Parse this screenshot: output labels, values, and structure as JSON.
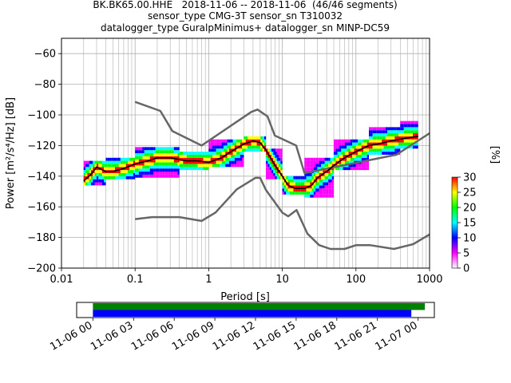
{
  "chart_data": [
    {
      "type": "heatmap",
      "title_lines": [
        "BK.BK65.00.HHE   2018-11-06 -- 2018-11-06  (46/46 segments)",
        "sensor_type CMG-3T sensor_sn T310032",
        "datalogger_type GuralpMinimus+ datalogger_sn MINP-DC59"
      ],
      "xlabel": "Period [s]",
      "ylabel": "Power [m²/s⁴/Hz] [dB]",
      "xscale": "log",
      "xlim": [
        0.01,
        1000
      ],
      "ylim": [
        -200,
        -50
      ],
      "xticks": [
        0.01,
        0.1,
        1,
        10,
        100,
        1000
      ],
      "xtick_labels": [
        "0.01",
        "0.1",
        "1",
        "10",
        "100",
        "1000"
      ],
      "yticks": [
        -200,
        -180,
        -160,
        -140,
        -120,
        -100,
        -80,
        -60
      ],
      "ytick_labels": [
        "−200",
        "−180",
        "−160",
        "−140",
        "−120",
        "−100",
        "−80",
        "−60"
      ],
      "grid": true,
      "nhnm": {
        "name": "NHNM",
        "x": [
          0.1,
          0.22,
          0.32,
          0.8,
          3.8,
          4.6,
          6.3,
          7.9,
          15.4,
          20,
          354.8,
          1000
        ],
        "y": [
          -91.5,
          -97.4,
          -110.5,
          -120,
          -98,
          -96.5,
          -101,
          -113.5,
          -120,
          -138,
          -126,
          -112
        ]
      },
      "nlnm": {
        "name": "NLNM",
        "x": [
          0.1,
          0.17,
          0.4,
          0.8,
          1.24,
          2.4,
          4.3,
          5,
          6,
          10,
          12,
          15.6,
          21.9,
          31.6,
          45,
          70,
          101,
          154,
          328,
          600,
          1000
        ],
        "y": [
          -168,
          -166.7,
          -166.7,
          -169.2,
          -163.7,
          -148.6,
          -141.1,
          -141.1,
          -149,
          -163.8,
          -166.2,
          -162.1,
          -177.5,
          -185,
          -187.5,
          -187.5,
          -185,
          -185,
          -187.5,
          -184.4,
          -178
        ]
      },
      "mode": {
        "name": "Mode",
        "x": [
          0.02,
          0.025,
          0.03,
          0.04,
          0.05,
          0.07,
          0.1,
          0.15,
          0.2,
          0.3,
          0.5,
          0.7,
          1,
          1.5,
          2,
          3,
          4,
          5,
          6,
          8,
          10,
          12,
          15,
          20,
          25,
          30,
          40,
          50,
          70,
          100,
          150,
          200,
          300,
          500,
          700
        ],
        "y": [
          -143,
          -139,
          -134,
          -137,
          -137,
          -135,
          -132,
          -130,
          -128,
          -128,
          -130,
          -130,
          -131,
          -128,
          -124,
          -119,
          -117,
          -118,
          -123,
          -133,
          -140,
          -146,
          -148,
          -148,
          -146,
          -141,
          -137,
          -133,
          -128,
          -124,
          -120,
          -119,
          -117,
          -115,
          -114
        ]
      },
      "pdf_bands": [
        {
          "x_from": 0.02,
          "x_to": 0.04,
          "y_from": -146,
          "y_to": -130
        },
        {
          "x_from": 0.04,
          "x_to": 0.1,
          "y_from": -142,
          "y_to": -128
        },
        {
          "x_from": 0.1,
          "x_to": 0.4,
          "y_from": -141,
          "y_to": -122
        },
        {
          "x_from": 0.4,
          "x_to": 1,
          "y_from": -136,
          "y_to": -125
        },
        {
          "x_from": 1,
          "x_to": 3,
          "y_from": -134,
          "y_to": -116
        },
        {
          "x_from": 3,
          "x_to": 6,
          "y_from": -124,
          "y_to": -114
        },
        {
          "x_from": 6,
          "x_to": 10,
          "y_from": -142,
          "y_to": -122
        },
        {
          "x_from": 10,
          "x_to": 20,
          "y_from": -152,
          "y_to": -140
        },
        {
          "x_from": 20,
          "x_to": 50,
          "y_from": -154,
          "y_to": -128
        },
        {
          "x_from": 50,
          "x_to": 150,
          "y_from": -136,
          "y_to": -116
        },
        {
          "x_from": 150,
          "x_to": 400,
          "y_from": -126,
          "y_to": -108
        },
        {
          "x_from": 400,
          "x_to": 700,
          "y_from": -122,
          "y_to": -104
        }
      ],
      "colorbar": {
        "label": "[%]",
        "min": 0,
        "max": 30,
        "ticks": [
          0,
          5,
          10,
          15,
          20,
          25,
          30
        ],
        "tick_labels": [
          "0",
          "5",
          "10",
          "15",
          "20",
          "25",
          "30"
        ],
        "colormap": [
          "#ffffff",
          "#ff00ff",
          "#0000ff",
          "#00ffff",
          "#00ff00",
          "#ffff00",
          "#ff0000"
        ]
      }
    },
    {
      "type": "timeline",
      "xtick_labels": [
        "11-06 00",
        "11-06 03",
        "11-06 06",
        "11-06 09",
        "11-06 12",
        "11-06 15",
        "11-06 18",
        "11-06 21",
        "11-07 00"
      ],
      "xticks_hours": [
        0,
        3,
        6,
        9,
        12,
        15,
        18,
        21,
        24
      ],
      "xlim_hours": [
        -1.2,
        25.2
      ],
      "bars": [
        {
          "from_hours": 0,
          "to_hours": 24.5,
          "color": "#008000"
        },
        {
          "from_hours": 0,
          "to_hours": 23.5,
          "color": "#0000ff"
        }
      ]
    }
  ]
}
